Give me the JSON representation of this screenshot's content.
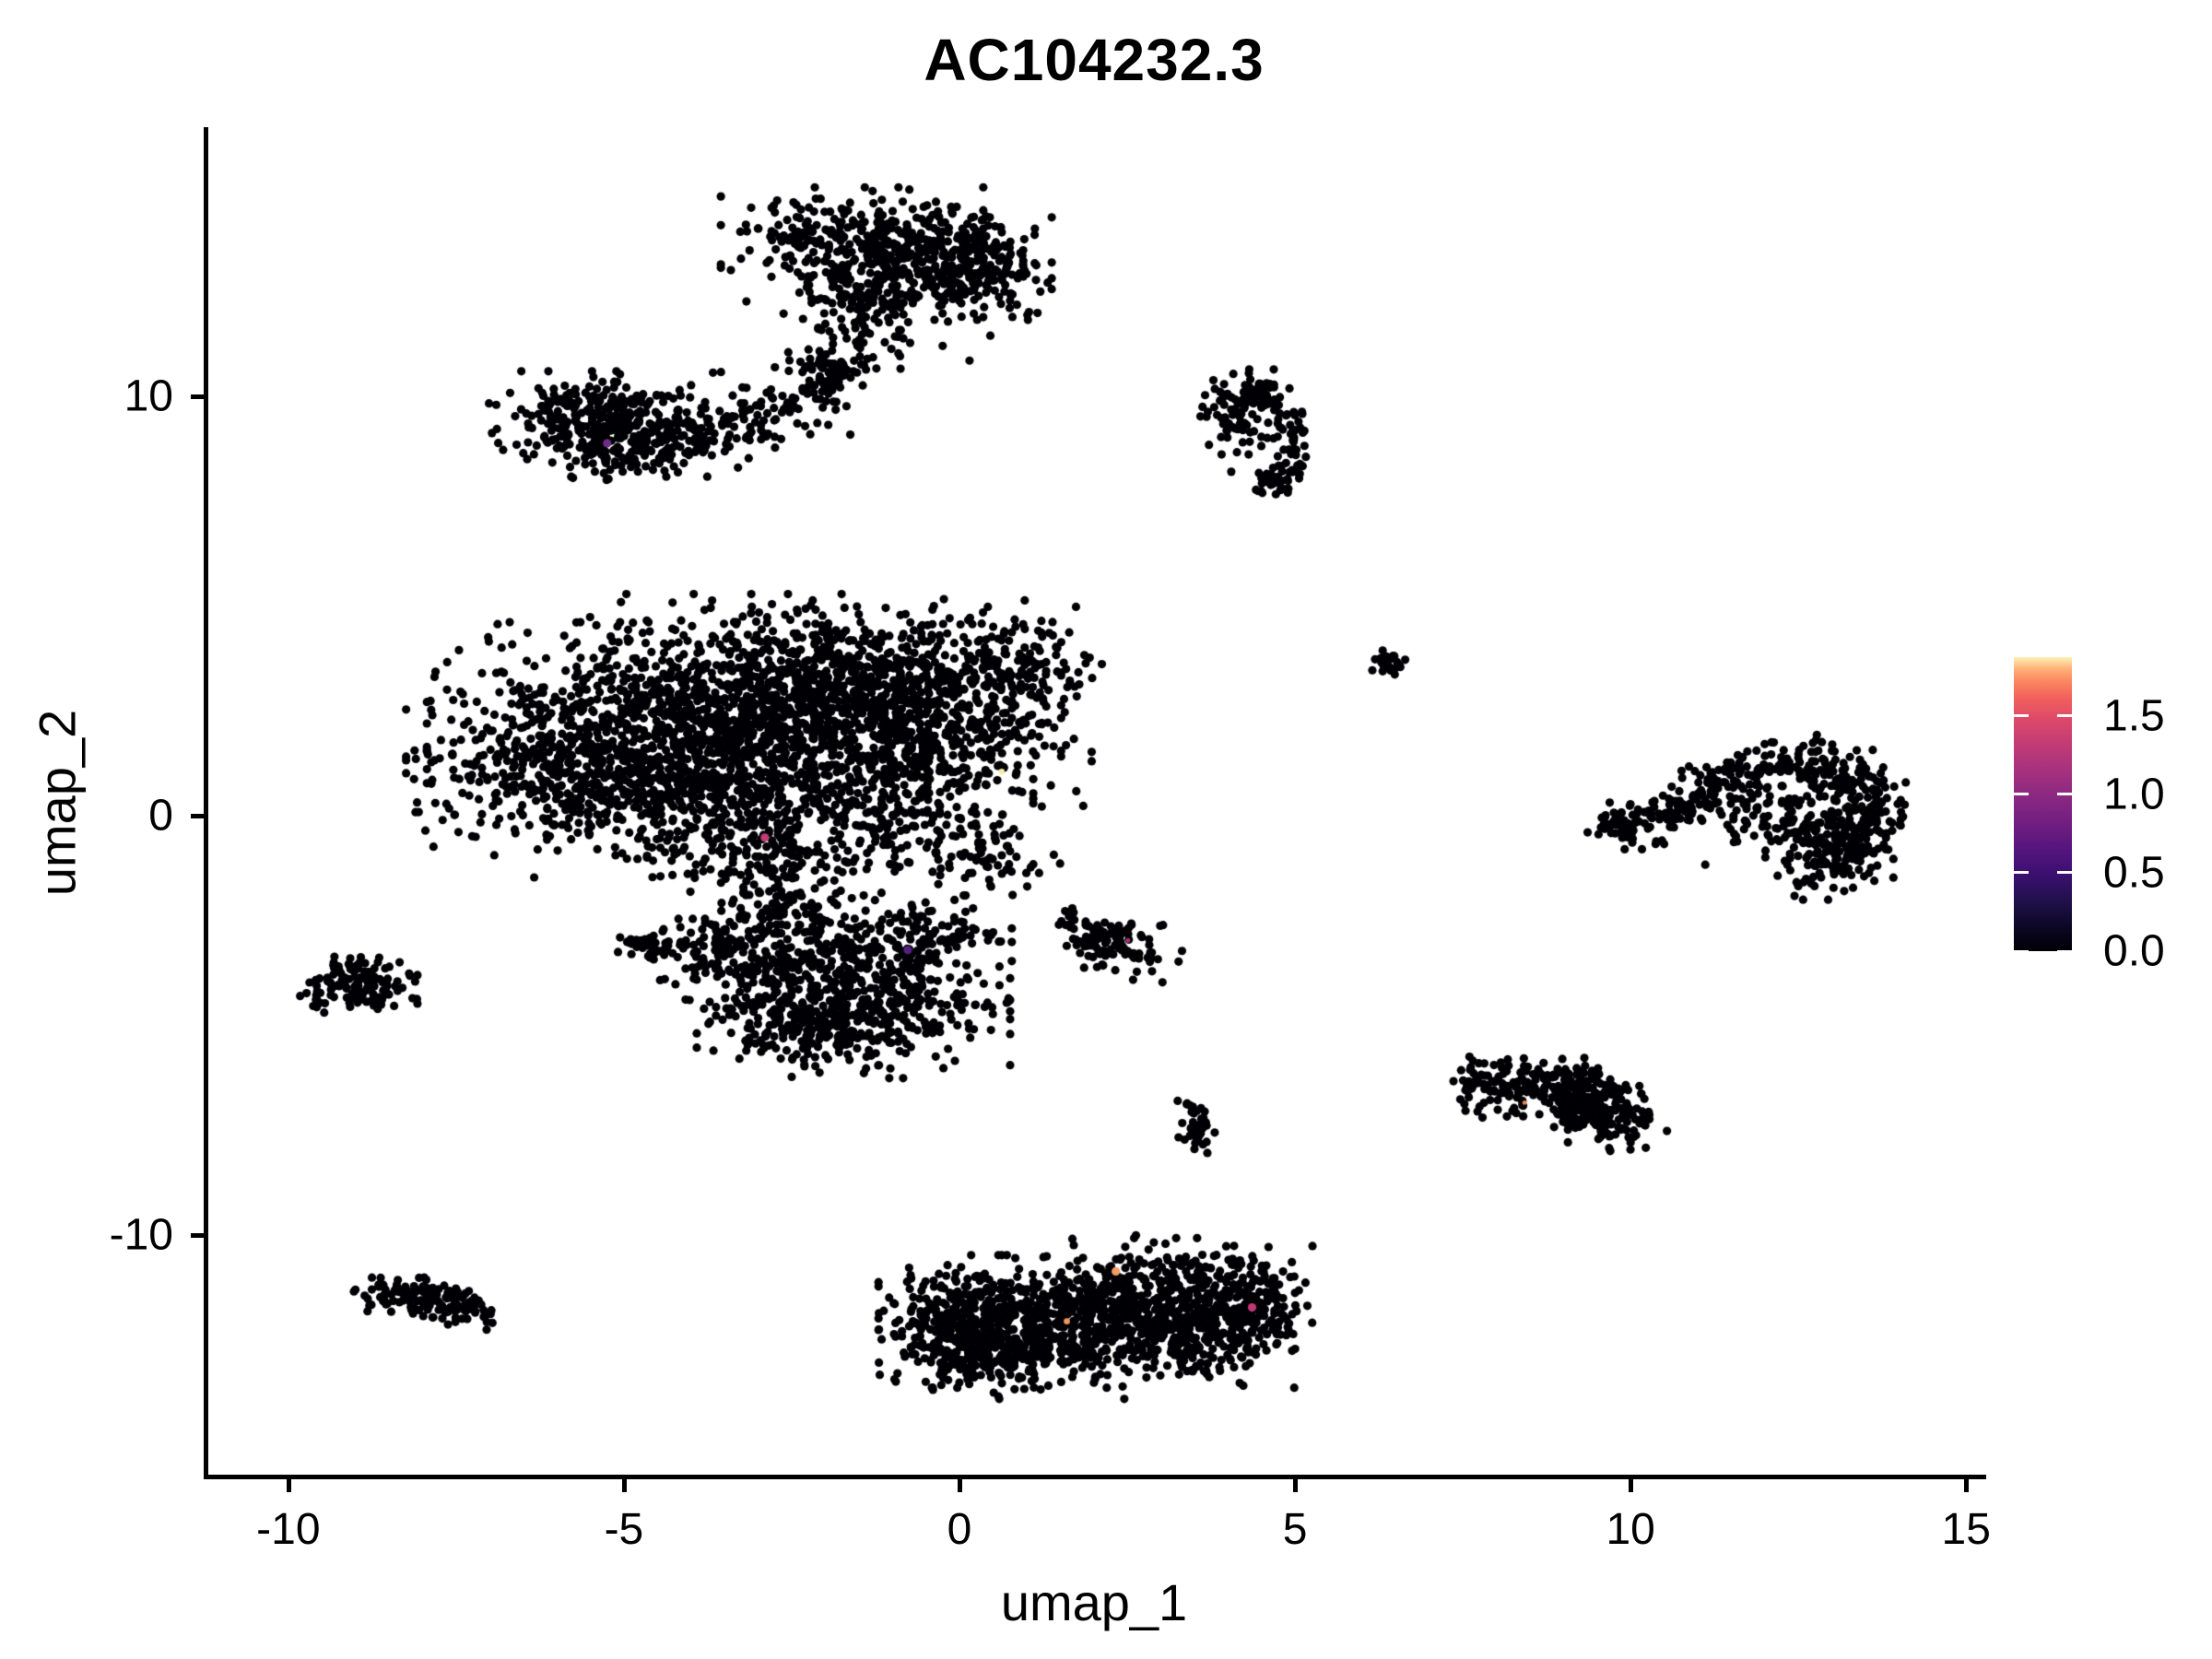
{
  "title": "AC104232.3",
  "axes": {
    "x": {
      "label": "umap_1",
      "ticks": [
        {
          "value": -10,
          "label": "-10"
        },
        {
          "value": -5,
          "label": "-5"
        },
        {
          "value": 0,
          "label": "0"
        },
        {
          "value": 5,
          "label": "5"
        },
        {
          "value": 10,
          "label": "10"
        },
        {
          "value": 15,
          "label": "15"
        }
      ]
    },
    "y": {
      "label": "umap_2",
      "ticks": [
        {
          "value": 10,
          "label": "10"
        },
        {
          "value": 0,
          "label": "0"
        },
        {
          "value": -10,
          "label": "-10"
        }
      ]
    }
  },
  "legend": {
    "max": 1.876,
    "ticks": [
      {
        "value": 1.5,
        "label": "1.5"
      },
      {
        "value": 1.0,
        "label": "1.0"
      },
      {
        "value": 0.5,
        "label": "0.5"
      },
      {
        "value": 0.0,
        "label": "0.0"
      }
    ],
    "gradient": [
      [
        0.0,
        "#000004"
      ],
      [
        0.08,
        "#0b0724"
      ],
      [
        0.17,
        "#20114b"
      ],
      [
        0.26,
        "#3b0f70"
      ],
      [
        0.35,
        "#57157e"
      ],
      [
        0.44,
        "#721f81"
      ],
      [
        0.53,
        "#8c2981"
      ],
      [
        0.62,
        "#a8327d"
      ],
      [
        0.71,
        "#c43c75"
      ],
      [
        0.79,
        "#de4968"
      ],
      [
        0.86,
        "#f1605d"
      ],
      [
        0.92,
        "#fb8861"
      ],
      [
        0.96,
        "#feb078"
      ],
      [
        1.0,
        "#fbf2b4"
      ]
    ]
  },
  "colors": {
    "point": "#010004",
    "background": "#ffffff",
    "axis": "#000000"
  },
  "chart_data": {
    "type": "scatter",
    "title": "AC104232.3",
    "xlabel": "umap_1",
    "ylabel": "umap_2",
    "xlim": [
      -11.22,
      15.23
    ],
    "ylim": [
      -15.75,
      16.37
    ],
    "x_ticks": [
      -10,
      -5,
      0,
      5,
      10,
      15
    ],
    "y_ticks": [
      -10,
      0,
      10
    ],
    "grid": false,
    "legend_position": "right",
    "legend_range": [
      0,
      1.876
    ],
    "point_radius": 4.6,
    "clusters": [
      {
        "name": "top-blob",
        "blobs": [
          [
            -1.6,
            13.6,
            0.85,
            0.6,
            270
          ],
          [
            -0.35,
            13.25,
            0.75,
            0.55,
            220
          ],
          [
            0.2,
            13.0,
            0.5,
            0.55,
            140
          ],
          [
            -1.15,
            12.3,
            0.7,
            0.4,
            110
          ],
          [
            -2.0,
            10.55,
            0.26,
            0.2,
            40
          ]
        ],
        "streams": [
          {
            "path": [
              [
                -0.9,
                11.95
              ],
              [
                -1.45,
                11.2
              ],
              [
                -1.95,
                10.6
              ],
              [
                -2.35,
                10.0
              ]
            ],
            "jitter": 0.33,
            "n": 80
          }
        ]
      },
      {
        "name": "upper-left-band",
        "blobs": [
          [
            -5.4,
            9.4,
            0.7,
            0.52,
            250
          ],
          [
            -4.45,
            9.05,
            0.65,
            0.42,
            170
          ]
        ],
        "streams": [
          {
            "path": [
              [
                -3.8,
                9.35
              ],
              [
                -3.0,
                9.6
              ],
              [
                -2.2,
                9.95
              ]
            ],
            "jitter": 0.42,
            "n": 90
          },
          {
            "path": [
              [
                -5.9,
                8.7
              ],
              [
                -5.0,
                8.55
              ]
            ],
            "jitter": 0.25,
            "n": 30
          }
        ]
      },
      {
        "name": "hook-cluster",
        "blobs": [
          [
            4.35,
            9.95,
            0.33,
            0.3,
            80
          ],
          [
            4.15,
            9.35,
            0.28,
            0.32,
            35
          ],
          [
            4.67,
            7.87,
            0.17,
            0.12,
            18
          ]
        ],
        "streams": [
          {
            "path": [
              [
                4.75,
                9.7
              ],
              [
                4.9,
                9.0
              ],
              [
                4.85,
                8.4
              ],
              [
                4.7,
                7.95
              ]
            ],
            "jitter": 0.17,
            "n": 70
          }
        ]
      },
      {
        "name": "central-giant",
        "blobs": [
          [
            -4.6,
            2.2,
            1.45,
            1.05,
            680
          ],
          [
            -2.6,
            3.1,
            1.35,
            0.95,
            580
          ],
          [
            -0.9,
            2.95,
            1.05,
            0.95,
            430
          ],
          [
            -5.6,
            0.9,
            1.15,
            0.8,
            370
          ],
          [
            -3.4,
            0.6,
            1.35,
            0.9,
            440
          ],
          [
            -1.2,
            0.8,
            1.0,
            0.85,
            300
          ],
          [
            -0.1,
            1.9,
            0.9,
            0.85,
            200
          ],
          [
            -2.7,
            -1.0,
            0.85,
            0.55,
            150
          ],
          [
            0.3,
            -0.85,
            0.55,
            0.5,
            80
          ],
          [
            0.9,
            3.6,
            0.55,
            0.6,
            120
          ]
        ],
        "streams": [
          {
            "path": [
              [
                -2.8,
                -1.9
              ],
              [
                -2.45,
                -2.5
              ]
            ],
            "jitter": 0.3,
            "n": 45
          }
        ]
      },
      {
        "name": "lower-mid-blob",
        "blobs": [
          [
            -2.6,
            -3.4,
            0.85,
            0.68,
            290
          ],
          [
            -1.2,
            -4.6,
            0.85,
            0.72,
            320
          ],
          [
            -2.35,
            -5.0,
            0.68,
            0.5,
            180
          ],
          [
            -0.6,
            -3.05,
            0.6,
            0.5,
            140
          ],
          [
            -3.65,
            -3.1,
            0.33,
            0.28,
            50
          ]
        ],
        "streams": []
      },
      {
        "name": "dash-cluster",
        "blobs": [],
        "streams": [
          {
            "path": [
              [
                -4.95,
                -3.0
              ],
              [
                -4.3,
                -3.2
              ]
            ],
            "jitter": 0.13,
            "n": 40
          }
        ]
      },
      {
        "name": "small-left-cluster",
        "blobs": [
          [
            -8.95,
            -4.05,
            0.38,
            0.3,
            130
          ]
        ],
        "streams": []
      },
      {
        "name": "small-mid-right-cluster",
        "blobs": [
          [
            2.35,
            -3.25,
            0.42,
            0.32,
            80
          ]
        ],
        "streams": [
          {
            "path": [
              [
                1.65,
                -2.55
              ],
              [
                2.05,
                -2.8
              ],
              [
                2.45,
                -3.05
              ]
            ],
            "jitter": 0.18,
            "n": 45
          }
        ]
      },
      {
        "name": "tiny-dot-cluster",
        "blobs": [
          [
            6.4,
            3.6,
            0.14,
            0.17,
            22
          ]
        ],
        "streams": []
      },
      {
        "name": "right-crescent",
        "blobs": [
          [
            12.3,
            0.1,
            0.75,
            0.55,
            150
          ],
          [
            12.95,
            -0.85,
            0.42,
            0.5,
            100
          ],
          [
            10.05,
            -0.2,
            0.3,
            0.26,
            75
          ]
        ],
        "streams": [
          {
            "path": [
              [
                10.9,
                0.25
              ],
              [
                11.3,
                0.85
              ],
              [
                12.0,
                1.25
              ],
              [
                12.8,
                1.3
              ],
              [
                13.4,
                0.85
              ],
              [
                13.55,
                0.15
              ],
              [
                13.3,
                -0.6
              ],
              [
                12.9,
                -1.25
              ]
            ],
            "jitter": 0.28,
            "n": 330
          },
          {
            "path": [
              [
                10.4,
                -0.05
              ],
              [
                10.9,
                0.3
              ]
            ],
            "jitter": 0.15,
            "n": 25
          }
        ]
      },
      {
        "name": "right-low-band",
        "blobs": [
          [
            9.3,
            -6.95,
            0.4,
            0.42,
            90
          ]
        ],
        "streams": [
          {
            "path": [
              [
                7.55,
                -6.25
              ],
              [
                8.1,
                -6.55
              ],
              [
                8.7,
                -6.3
              ],
              [
                9.3,
                -6.5
              ],
              [
                9.6,
                -7.0
              ],
              [
                9.9,
                -7.6
              ]
            ],
            "jitter": 0.29,
            "n": 300
          }
        ]
      },
      {
        "name": "small-streak",
        "blobs": [],
        "streams": [
          {
            "path": [
              [
                3.45,
                -6.75
              ],
              [
                3.6,
                -7.35
              ],
              [
                3.5,
                -7.9
              ]
            ],
            "jitter": 0.12,
            "n": 40
          }
        ]
      },
      {
        "name": "bottom-left-cluster",
        "blobs": [],
        "streams": [
          {
            "path": [
              [
                -8.75,
                -11.25
              ],
              [
                -8.15,
                -11.5
              ],
              [
                -7.55,
                -11.6
              ],
              [
                -7.05,
                -11.8
              ]
            ],
            "jitter": 0.21,
            "n": 150
          }
        ]
      },
      {
        "name": "bottom-dumbbell",
        "blobs": [
          [
            0.45,
            -11.9,
            0.72,
            0.62,
            320
          ],
          [
            0.8,
            -12.75,
            0.72,
            0.5,
            230
          ],
          [
            -0.05,
            -12.3,
            0.5,
            0.58,
            160
          ],
          [
            2.9,
            -11.4,
            0.78,
            0.58,
            330
          ],
          [
            3.6,
            -12.3,
            0.72,
            0.58,
            300
          ],
          [
            4.35,
            -11.45,
            0.45,
            0.52,
            130
          ],
          [
            1.85,
            -12.2,
            0.5,
            0.55,
            170
          ]
        ],
        "streams": []
      }
    ],
    "outlier_points": [
      [
        -8.15,
        -4.35
      ],
      [
        2.63,
        -10.0
      ],
      [
        3.07,
        -10.2
      ],
      [
        1.3,
        -10.5
      ],
      [
        12.1,
        1.75
      ],
      [
        13.0,
        1.55
      ],
      [
        -2.55,
        11.05
      ],
      [
        -0.25,
        11.2
      ],
      [
        0.15,
        10.85
      ],
      [
        -3.3,
        8.3
      ],
      [
        4.05,
        8.2
      ],
      [
        4.5,
        8.05
      ]
    ],
    "expressing_points": [
      [
        -5.25,
        8.88,
        "#6c2d85",
        4.6
      ],
      [
        0.63,
        1.05,
        "#f6eca8",
        3.2
      ],
      [
        -2.9,
        -0.52,
        "#c23a76",
        4.6
      ],
      [
        -0.77,
        -3.2,
        "#54207f",
        4.6
      ],
      [
        2.51,
        -2.97,
        "#a03070",
        2.6
      ],
      [
        2.33,
        -10.86,
        "#f59d68",
        4.6
      ],
      [
        1.6,
        -12.05,
        "#f2975c",
        3.4
      ],
      [
        4.36,
        -11.72,
        "#c13878",
        4.6
      ],
      [
        8.42,
        -6.84,
        "#ed8055",
        2.4
      ]
    ]
  }
}
